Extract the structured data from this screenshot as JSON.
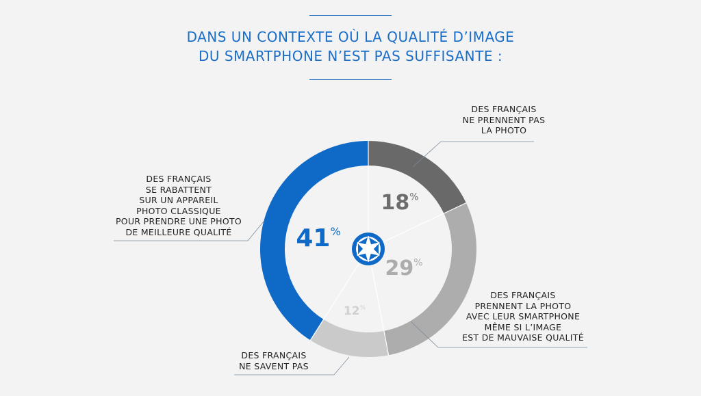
{
  "title": {
    "line1": "DANS UN CONTEXTE OÙ LA QUALITÉ D’IMAGE",
    "line2": "DU SMARTPHONE N’EST PAS SUFFISANTE :"
  },
  "colors": {
    "accent": "#0f69c6",
    "dark": "#696969",
    "mid": "#adadad",
    "light": "#cacaca",
    "background": "#f3f3f3"
  },
  "center_icon": "camera-shutter-icon",
  "chart_data": {
    "type": "pie",
    "title": "DANS UN CONTEXTE OÙ LA QUALITÉ D’IMAGE DU SMARTPHONE N’EST PAS SUFFISANTE :",
    "unit": "%",
    "slices": [
      {
        "label": "DES FRANÇAIS NE PRENNENT PAS LA PHOTO",
        "label_lines": [
          "DES FRANÇAIS",
          "NE PRENNENT PAS",
          "LA PHOTO"
        ],
        "value": 18,
        "color": "#696969"
      },
      {
        "label": "DES FRANÇAIS PRENNENT LA PHOTO AVEC LEUR SMARTPHONE MÊME SI L’IMAGE EST DE MAUVAISE QUALITÉ",
        "label_lines": [
          "DES FRANÇAIS",
          "PRENNENT LA PHOTO",
          "AVEC LEUR SMARTPHONE",
          "MÊME SI L’IMAGE",
          "EST DE MAUVAISE QUALITÉ"
        ],
        "value": 29,
        "color": "#adadad"
      },
      {
        "label": "DES FRANÇAIS NE SAVENT PAS",
        "label_lines": [
          "DES FRANÇAIS",
          "NE SAVENT PAS"
        ],
        "value": 12,
        "color": "#cacaca"
      },
      {
        "label": "DES FRANÇAIS SE RABATTENT SUR UN APPAREIL PHOTO CLASSIQUE POUR PRENDRE UNE PHOTO DE MEILLEURE QUALITÉ",
        "label_lines": [
          "DES FRANÇAIS",
          "SE RABATTENT",
          "SUR UN APPAREIL",
          "PHOTO CLASSIQUE",
          "POUR PRENDRE UNE PHOTO",
          "DE MEILLEURE QUALITÉ"
        ],
        "value": 41,
        "color": "#0f69c6"
      }
    ]
  }
}
